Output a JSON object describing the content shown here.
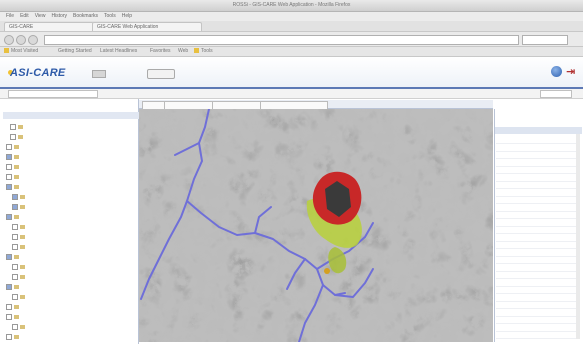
{
  "browser": {
    "window_title": "ROSSi - GIS-CARE Web Application - Mozilla Firefox",
    "menu": [
      "File",
      "Edit",
      "View",
      "History",
      "Bookmarks",
      "Tools",
      "Help"
    ],
    "tabs": [
      "GIS-CARE",
      "GIS-CARE Web Application"
    ],
    "url": "",
    "bookmarks": [
      "Most Visited",
      "Getting Started",
      "Latest Headlines",
      "Favorites",
      "Web",
      "Tools"
    ]
  },
  "app": {
    "logo_text": "ASI-CARE",
    "header_button": "",
    "colors": {
      "accent": "#2e5aa8",
      "header_border": "#5d79b5",
      "panel_head": "#e1e7f2"
    }
  },
  "left_panel": {
    "title": "",
    "header": "",
    "items": [
      {
        "label": "",
        "checked": false
      },
      {
        "label": "",
        "checked": false
      },
      {
        "label": "",
        "checked": false
      },
      {
        "label": "",
        "checked": true
      },
      {
        "label": "",
        "checked": false
      },
      {
        "label": "",
        "checked": false
      },
      {
        "label": "",
        "checked": true
      },
      {
        "label": "",
        "checked": true
      },
      {
        "label": "",
        "checked": true
      },
      {
        "label": "",
        "checked": true
      },
      {
        "label": "",
        "checked": false
      },
      {
        "label": "",
        "checked": false
      },
      {
        "label": "",
        "checked": false
      },
      {
        "label": "",
        "checked": true
      },
      {
        "label": "",
        "checked": false
      },
      {
        "label": "",
        "checked": false
      },
      {
        "label": "",
        "checked": true
      },
      {
        "label": "",
        "checked": false
      },
      {
        "label": "",
        "checked": false
      },
      {
        "label": "",
        "checked": false
      },
      {
        "label": "",
        "checked": false
      },
      {
        "label": "",
        "checked": false
      }
    ]
  },
  "map": {
    "tabs": [
      "",
      "",
      "",
      ""
    ],
    "status": ""
  },
  "right_panel": {
    "title": "",
    "header": "",
    "rows": [
      {
        "key": "",
        "value": ""
      },
      {
        "key": "",
        "value": ""
      },
      {
        "key": "",
        "value": ""
      },
      {
        "key": "",
        "value": ""
      },
      {
        "key": "",
        "value": ""
      },
      {
        "key": "",
        "value": ""
      },
      {
        "key": "",
        "value": ""
      },
      {
        "key": "",
        "value": ""
      },
      {
        "key": "",
        "value": ""
      },
      {
        "key": "",
        "value": ""
      },
      {
        "key": "",
        "value": ""
      },
      {
        "key": "",
        "value": ""
      },
      {
        "key": "",
        "value": ""
      },
      {
        "key": "",
        "value": ""
      },
      {
        "key": "",
        "value": ""
      },
      {
        "key": "",
        "value": ""
      },
      {
        "key": "",
        "value": ""
      },
      {
        "key": "",
        "value": ""
      },
      {
        "key": "",
        "value": ""
      },
      {
        "key": "",
        "value": ""
      },
      {
        "key": "",
        "value": ""
      },
      {
        "key": "",
        "value": ""
      },
      {
        "key": "",
        "value": ""
      },
      {
        "key": "",
        "value": ""
      },
      {
        "key": "",
        "value": ""
      },
      {
        "key": "",
        "value": ""
      },
      {
        "key": "",
        "value": ""
      }
    ]
  }
}
